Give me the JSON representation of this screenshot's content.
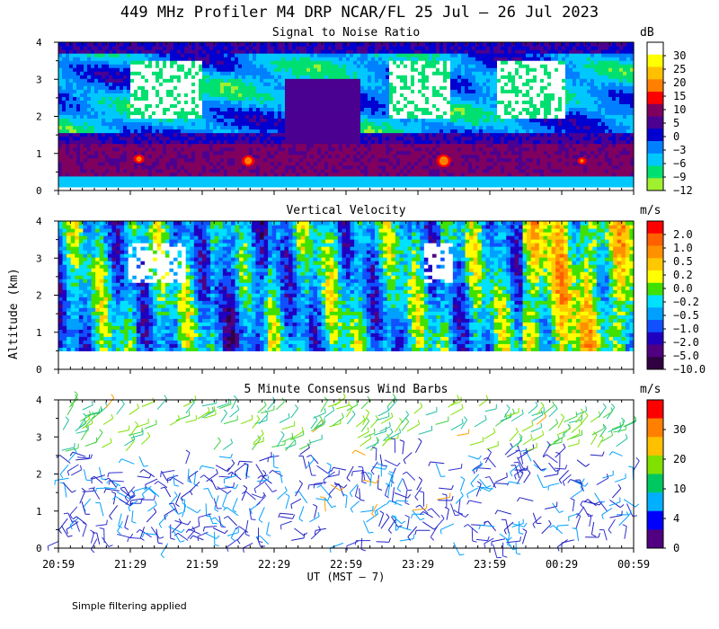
{
  "title": "449 MHz Profiler M4 DRP NCAR/FL 25 Jul – 26 Jul 2023",
  "y_axis_label": "Altitude (km)",
  "x_axis_label": "UT  (MST – 7)",
  "footnote": "Simple filtering applied",
  "colors": {
    "background": "#ffffff",
    "axis": "#000000"
  },
  "chart_data": [
    {
      "type": "heatmap",
      "title": "Signal to Noise Ratio",
      "units": "dB",
      "xlabel": "UT (MST - 7)",
      "ylabel": "Altitude (km)",
      "x_ticks": [
        "20:59",
        "21:29",
        "21:59",
        "22:29",
        "22:59",
        "23:29",
        "23:59",
        "00:29",
        "00:59"
      ],
      "y_ticks": [
        "0",
        "1",
        "2",
        "3",
        "4"
      ],
      "ylim": [
        0,
        4
      ],
      "colorbar": {
        "labels": [
          "30",
          "25",
          "20",
          "15",
          "10",
          "5",
          "0",
          "−3",
          "−6",
          "−9",
          "−12"
        ],
        "colors": [
          "#ffffff",
          "#ffff00",
          "#ffc000",
          "#ff8000",
          "#ff0000",
          "#800060",
          "#4b0090",
          "#0000d0",
          "#0080ff",
          "#00c8ff",
          "#00e070",
          "#a0f030"
        ]
      },
      "regions": [
        {
          "label": "strong echo peak",
          "x": "21:49",
          "alt_km": 0.8,
          "level": "15"
        },
        {
          "label": "strong echo peak",
          "x": "23:20",
          "alt_km": 0.8,
          "level": "15"
        },
        {
          "label": "high SNR region",
          "x": "21:35-21:59",
          "alt_km": 2.5,
          "level": "30"
        },
        {
          "label": "high SNR region",
          "x": "23:05-23:29",
          "alt_km": 3.3,
          "level": "30"
        }
      ]
    },
    {
      "type": "heatmap",
      "title": "Vertical Velocity",
      "units": "m/s",
      "xlabel": "UT (MST - 7)",
      "ylabel": "Altitude (km)",
      "x_ticks": [
        "20:59",
        "21:29",
        "21:59",
        "22:29",
        "22:59",
        "23:29",
        "23:59",
        "00:29",
        "00:59"
      ],
      "y_ticks": [
        "0",
        "1",
        "2",
        "3",
        "4"
      ],
      "ylim": [
        0,
        4
      ],
      "colorbar": {
        "labels": [
          "2.0",
          "1.0",
          "0.5",
          "0.2",
          "0.0",
          "−0.2",
          "−0.5",
          "−1.0",
          "−2.0",
          "−5.0",
          "−10.0"
        ],
        "colors": [
          "#ff0000",
          "#ff6000",
          "#ff9000",
          "#ffc800",
          "#ffff00",
          "#40e000",
          "#00e0ff",
          "#00a0ff",
          "#1050ff",
          "#2000c0",
          "#500080",
          "#300040"
        ]
      }
    },
    {
      "type": "scatter",
      "title": "5 Minute Consensus Wind Barbs",
      "units": "m/s",
      "xlabel": "UT (MST - 7)",
      "ylabel": "Altitude (km)",
      "x_ticks": [
        "20:59",
        "21:29",
        "21:59",
        "22:29",
        "22:59",
        "23:29",
        "23:59",
        "00:29",
        "00:59"
      ],
      "y_ticks": [
        "0",
        "1",
        "2",
        "3",
        "4"
      ],
      "ylim": [
        0,
        4
      ],
      "colorbar": {
        "labels": [
          "30",
          "20",
          "10",
          "4",
          "0"
        ],
        "colors": [
          "#ff0000",
          "#ff8000",
          "#ffc000",
          "#80e000",
          "#00c860",
          "#00b0ff",
          "#0000ff",
          "#500080"
        ]
      },
      "barb_colors": [
        "#2020c0",
        "#3030d0",
        "#00a0ff",
        "#20c0a0",
        "#40d040",
        "#80e000",
        "#ffa000"
      ]
    }
  ]
}
